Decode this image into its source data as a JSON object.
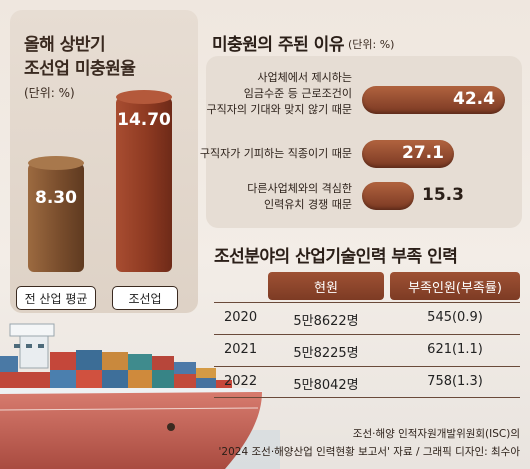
{
  "left": {
    "title_line1": "올해 상반기",
    "title_line2": "조선업 미충원율",
    "unit": "(단위: %)"
  },
  "right_top": {
    "title": "미충원의 주된 이유",
    "unit": "(단위: %)"
  },
  "table": {
    "title": "조선분야의 산업기술인력 부족 인력",
    "headers": [
      "현원",
      "부족인원(부족률)"
    ],
    "rows": [
      {
        "year": "2020",
        "current": "5만8622명",
        "shortage": "545(0.9)"
      },
      {
        "year": "2021",
        "current": "5만8225명",
        "shortage": "621(1.1)"
      },
      {
        "year": "2022",
        "current": "5만8042명",
        "shortage": "758(1.3)"
      }
    ]
  },
  "source": {
    "line1": "조선·해양 인적자원개발위원회(ISC)의",
    "line2": "'2024 조선·해양산업 인력현황 보고서' 자료 / 그래픽 디자인: 최수아"
  },
  "chart_data": [
    {
      "type": "bar",
      "title": "올해 상반기 조선업 미충원율",
      "unit": "%",
      "categories": [
        "전 산업 평균",
        "조선업"
      ],
      "values": [
        8.3,
        14.7
      ],
      "value_labels": [
        "8.30",
        "14.70"
      ],
      "colors": [
        "#7a4e2d",
        "#8e3a22"
      ]
    },
    {
      "type": "bar",
      "orientation": "horizontal",
      "title": "미충원의 주된 이유",
      "unit": "%",
      "categories": [
        "사업체에서 제시하는 임금수준 등 근로조건이 구직자의 기대와 맞지 않기 때문",
        "구직자가 기피하는 직종이기 때문",
        "다른사업체와의 격심한 인력유치 경쟁 때문"
      ],
      "category_lines": [
        [
          "사업체에서 제시하는",
          "임금수준 등 근로조건이",
          "구직자의 기대와 맞지 않기 때문"
        ],
        [
          "구직자가 기피하는 직종이기 때문"
        ],
        [
          "다른사업체와의 격심한",
          "인력유치 경쟁 때문"
        ]
      ],
      "values": [
        42.4,
        27.1,
        15.3
      ],
      "value_labels": [
        "42.4",
        "27.1",
        "15.3"
      ]
    }
  ]
}
